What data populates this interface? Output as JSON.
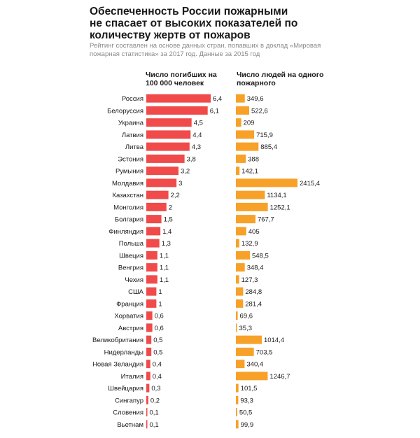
{
  "header": {
    "title": "Обеспеченность России пожарными не спасает от высоких показателей по количеству жертв от пожаров",
    "subtitle": "Рейтинг составлен на основе данных стран, попавших в доклад «Мировая пожарная статистика» за 2017 год. Данные за 2015 год"
  },
  "colors": {
    "deaths_bar": "#f04a4a",
    "people_bar": "#f7a128"
  },
  "chart_data": {
    "type": "bar",
    "orientation": "horizontal",
    "categories": [
      "Россия",
      "Белоруссия",
      "Украина",
      "Латвия",
      "Литва",
      "Эстония",
      "Румыния",
      "Молдавия",
      "Казахстан",
      "Монголия",
      "Болгария",
      "Финляндия",
      "Польша",
      "Швеция",
      "Венгрия",
      "Чехия",
      "США",
      "Франция",
      "Хорватия",
      "Австрия",
      "Великобритания",
      "Нидерланды",
      "Новая Зеландия",
      "Италия",
      "Швейцария",
      "Сингапур",
      "Словения",
      "Вьетнам"
    ],
    "series": [
      {
        "name": "Число погибших на 100 000 человек",
        "values": [
          6.4,
          6.1,
          4.5,
          4.4,
          4.3,
          3.8,
          3.2,
          3,
          2.2,
          2,
          1.5,
          1.4,
          1.3,
          1.1,
          1.1,
          1.1,
          1,
          1,
          0.6,
          0.6,
          0.5,
          0.5,
          0.4,
          0.4,
          0.3,
          0.2,
          0.1,
          0.1
        ],
        "labels": [
          "6,4",
          "6,1",
          "4,5",
          "4,4",
          "4,3",
          "3,8",
          "3,2",
          "3",
          "2,2",
          "2",
          "1,5",
          "1,4",
          "1,3",
          "1,1",
          "1,1",
          "1,1",
          "1",
          "1",
          "0,6",
          "0,6",
          "0,5",
          "0,5",
          "0,4",
          "0,4",
          "0,3",
          "0,2",
          "0,1",
          "0,1"
        ],
        "xlim": [
          0,
          6.4
        ]
      },
      {
        "name": "Число людей на одного пожарного",
        "values": [
          349.6,
          522.6,
          209,
          715.9,
          885.4,
          388,
          142.1,
          2415.4,
          1134.1,
          1252.1,
          767.7,
          405,
          132.9,
          548.5,
          348.4,
          127.3,
          284.8,
          281.4,
          69.6,
          35.3,
          1014.4,
          703.5,
          340.4,
          1246.7,
          101.5,
          93.3,
          50.5,
          99.9
        ],
        "labels": [
          "349,6",
          "522,6",
          "209",
          "715,9",
          "885,4",
          "388",
          "142,1",
          "2415,4",
          "1134,1",
          "1252,1",
          "767,7",
          "405",
          "132,9",
          "548,5",
          "348,4",
          "127,3",
          "284,8",
          "281,4",
          "69,6",
          "35,3",
          "1014,4",
          "703,5",
          "340,4",
          "1246,7",
          "101,5",
          "93,3",
          "50,5",
          "99,9"
        ],
        "xlim": [
          0,
          2415.4
        ]
      }
    ]
  }
}
